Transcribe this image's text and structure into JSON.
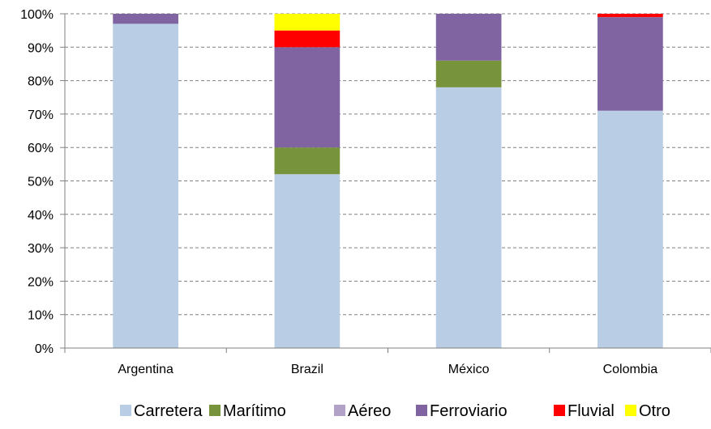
{
  "chart_data": {
    "type": "bar",
    "stacked": true,
    "percent_stacked": true,
    "categories": [
      "Argentina",
      "Brazil",
      "México",
      "Colombia"
    ],
    "series": [
      {
        "name": "Carretera",
        "color": "#B9CDE5",
        "values": [
          97,
          52,
          78,
          71
        ]
      },
      {
        "name": "Marítimo",
        "color": "#77933C",
        "values": [
          0,
          8,
          8,
          0
        ]
      },
      {
        "name": "Aéreo",
        "color": "#B3A2C7",
        "values": [
          0,
          0,
          0,
          0
        ]
      },
      {
        "name": "Ferroviario",
        "color": "#8064A2",
        "values": [
          3,
          30,
          14,
          28
        ]
      },
      {
        "name": "Fluvial",
        "color": "#FF0000",
        "values": [
          0,
          5,
          0,
          1
        ]
      },
      {
        "name": "Otro",
        "color": "#FFFF00",
        "values": [
          0,
          5,
          0,
          0
        ]
      }
    ],
    "yticks": [
      "0%",
      "10%",
      "20%",
      "30%",
      "40%",
      "50%",
      "60%",
      "70%",
      "80%",
      "90%",
      "100%"
    ],
    "ylim": [
      0,
      100
    ],
    "grid": true,
    "grid_style": "dashed",
    "legend_position": "bottom"
  }
}
